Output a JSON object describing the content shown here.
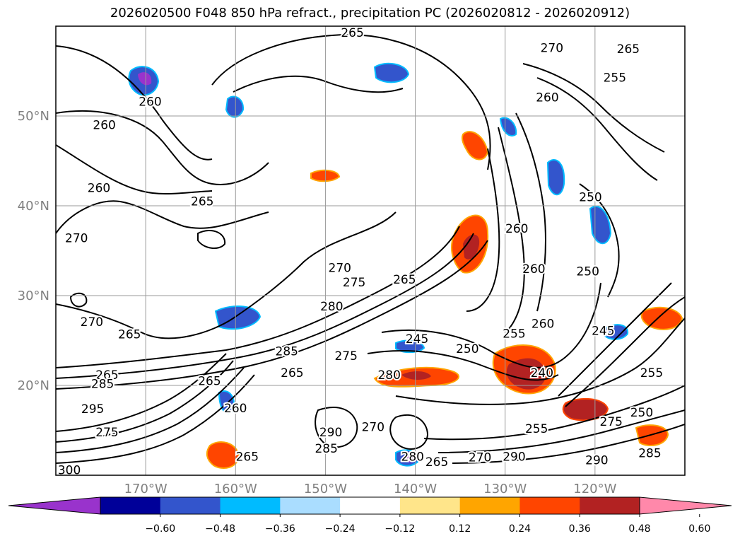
{
  "title": "2026020500 F048 850 hPa refract., precipitation PC (2026020812 - 2026020912)",
  "chart_data": {
    "type": "map-contour",
    "variables": [
      "850 hPa refractivity",
      "precipitation PC"
    ],
    "lon_ticks": [
      {
        "lon": -170,
        "label": "170°W"
      },
      {
        "lon": -160,
        "label": "160°W"
      },
      {
        "lon": -150,
        "label": "150°W"
      },
      {
        "lon": -140,
        "label": "140°W"
      },
      {
        "lon": -130,
        "label": "130°W"
      },
      {
        "lon": -120,
        "label": "120°W"
      }
    ],
    "lat_ticks": [
      {
        "lat": 20,
        "label": "20°N"
      },
      {
        "lat": 30,
        "label": "30°N"
      },
      {
        "lat": 40,
        "label": "40°N"
      },
      {
        "lat": 50,
        "label": "50°N"
      }
    ],
    "lon_range": [
      -180,
      -110
    ],
    "lat_range": [
      10,
      60
    ],
    "colorbar": {
      "extend": "both",
      "colors": [
        "#9933cc",
        "#000099",
        "#3355cc",
        "#00bbff",
        "#aaddff",
        "#ffffff",
        "#ffe58a",
        "#ffa500",
        "#ff4500",
        "#b22222",
        "#ff88aa"
      ],
      "ticks": [
        "−0.60",
        "−0.48",
        "−0.36",
        "−0.24",
        "−0.12",
        "0.12",
        "0.24",
        "0.36",
        "0.48",
        "0.60"
      ]
    },
    "contour_labels": [
      {
        "text": "265",
        "lon": -147.0,
        "lat": 59.3
      },
      {
        "text": "270",
        "lon": -124.8,
        "lat": 57.6
      },
      {
        "text": "265",
        "lon": -116.3,
        "lat": 57.5
      },
      {
        "text": "255",
        "lon": -117.8,
        "lat": 54.3
      },
      {
        "text": "260",
        "lon": -125.3,
        "lat": 52.1
      },
      {
        "text": "260",
        "lon": -169.5,
        "lat": 51.6
      },
      {
        "text": "260",
        "lon": -174.6,
        "lat": 49.0
      },
      {
        "text": "260",
        "lon": -175.2,
        "lat": 42.0
      },
      {
        "text": "265",
        "lon": -163.7,
        "lat": 40.5
      },
      {
        "text": "250",
        "lon": -120.5,
        "lat": 41.0
      },
      {
        "text": "260",
        "lon": -128.7,
        "lat": 37.5
      },
      {
        "text": "270",
        "lon": -177.7,
        "lat": 36.4
      },
      {
        "text": "270",
        "lon": -148.4,
        "lat": 33.1
      },
      {
        "text": "275",
        "lon": -146.8,
        "lat": 31.5
      },
      {
        "text": "265",
        "lon": -141.2,
        "lat": 31.8
      },
      {
        "text": "260",
        "lon": -126.8,
        "lat": 33.0
      },
      {
        "text": "250",
        "lon": -120.8,
        "lat": 32.7
      },
      {
        "text": "280",
        "lon": -149.3,
        "lat": 28.8
      },
      {
        "text": "270",
        "lon": -176.0,
        "lat": 27.1
      },
      {
        "text": "265",
        "lon": -171.8,
        "lat": 25.7
      },
      {
        "text": "245",
        "lon": -139.8,
        "lat": 25.2
      },
      {
        "text": "250",
        "lon": -134.2,
        "lat": 24.1
      },
      {
        "text": "255",
        "lon": -129.0,
        "lat": 25.8
      },
      {
        "text": "260",
        "lon": -125.8,
        "lat": 26.9
      },
      {
        "text": "245",
        "lon": -119.1,
        "lat": 26.1
      },
      {
        "text": "285",
        "lon": -154.3,
        "lat": 23.8
      },
      {
        "text": "275",
        "lon": -147.7,
        "lat": 23.3
      },
      {
        "text": "265",
        "lon": -174.3,
        "lat": 21.2
      },
      {
        "text": "285",
        "lon": -174.8,
        "lat": 20.2
      },
      {
        "text": "265",
        "lon": -153.7,
        "lat": 21.4
      },
      {
        "text": "280",
        "lon": -142.9,
        "lat": 21.2
      },
      {
        "text": "240",
        "lon": -125.9,
        "lat": 21.4
      },
      {
        "text": "255",
        "lon": -113.7,
        "lat": 21.4
      },
      {
        "text": "295",
        "lon": -175.9,
        "lat": 17.4
      },
      {
        "text": "260",
        "lon": -160.0,
        "lat": 17.5
      },
      {
        "text": "265",
        "lon": -162.9,
        "lat": 20.5
      },
      {
        "text": "255",
        "lon": -126.5,
        "lat": 15.2
      },
      {
        "text": "275",
        "lon": -118.2,
        "lat": 16.0
      },
      {
        "text": "250",
        "lon": -114.8,
        "lat": 17.0
      },
      {
        "text": "275",
        "lon": -174.3,
        "lat": 14.8
      },
      {
        "text": "290",
        "lon": -149.4,
        "lat": 14.8
      },
      {
        "text": "285",
        "lon": -149.9,
        "lat": 13.0
      },
      {
        "text": "270",
        "lon": -144.7,
        "lat": 15.4
      },
      {
        "text": "270",
        "lon": -132.8,
        "lat": 12.0
      },
      {
        "text": "290",
        "lon": -129.0,
        "lat": 12.1
      },
      {
        "text": "280",
        "lon": -140.3,
        "lat": 12.1
      },
      {
        "text": "265",
        "lon": -137.6,
        "lat": 11.5
      },
      {
        "text": "265",
        "lon": -158.7,
        "lat": 12.1
      },
      {
        "text": "285",
        "lon": -113.9,
        "lat": 12.5
      },
      {
        "text": "290",
        "lon": -119.8,
        "lat": 11.7
      },
      {
        "text": "300",
        "lon": -178.5,
        "lat": 10.6
      }
    ]
  }
}
